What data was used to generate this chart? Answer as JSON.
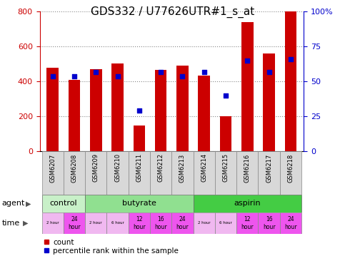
{
  "title": "GDS332 / U77626UTR#1_s_at",
  "samples": [
    "GSM6207",
    "GSM6208",
    "GSM6209",
    "GSM6210",
    "GSM6211",
    "GSM6212",
    "GSM6213",
    "GSM6214",
    "GSM6215",
    "GSM6216",
    "GSM6217",
    "GSM6218"
  ],
  "counts": [
    480,
    410,
    470,
    505,
    150,
    465,
    490,
    435,
    200,
    740,
    560,
    800
  ],
  "percentiles": [
    54,
    54,
    57,
    54,
    29,
    57,
    54,
    57,
    40,
    65,
    57,
    66
  ],
  "bar_color": "#cc0000",
  "dot_color": "#0000cc",
  "ylim_left": [
    0,
    800
  ],
  "ylim_right": [
    0,
    100
  ],
  "yticks_left": [
    0,
    200,
    400,
    600,
    800
  ],
  "yticks_right": [
    0,
    25,
    50,
    75,
    100
  ],
  "ytick_labels_right": [
    "0",
    "25",
    "50",
    "75",
    "100%"
  ],
  "agent_groups": [
    {
      "label": "control",
      "start": 0,
      "end": 2,
      "color": "#c8f0c8"
    },
    {
      "label": "butyrate",
      "start": 2,
      "end": 7,
      "color": "#90e090"
    },
    {
      "label": "aspirin",
      "start": 7,
      "end": 12,
      "color": "#44cc44"
    }
  ],
  "time_labels": [
    "2 hour",
    "24\nhour",
    "2 hour",
    "6 hour",
    "12\nhour",
    "16\nhour",
    "24\nhour",
    "2 hour",
    "6 hour",
    "12\nhour",
    "16\nhour",
    "24\nhour"
  ],
  "time_bg_small": [
    "#f0b8f0",
    "#ee55ee",
    "#f0b8f0",
    "#f0b8f0",
    "#ee55ee",
    "#ee55ee",
    "#ee55ee",
    "#f0b8f0",
    "#f0b8f0",
    "#ee55ee",
    "#ee55ee",
    "#ee55ee"
  ],
  "time_fontsize_small": [
    7,
    10,
    7,
    7,
    10,
    10,
    10,
    7,
    7,
    10,
    10,
    10
  ],
  "bar_width": 0.55,
  "title_fontsize": 11,
  "tick_fontsize": 8,
  "label_fontsize": 8,
  "sample_fontsize": 6,
  "fig_width": 4.83,
  "fig_height": 3.66,
  "fig_dpi": 100
}
